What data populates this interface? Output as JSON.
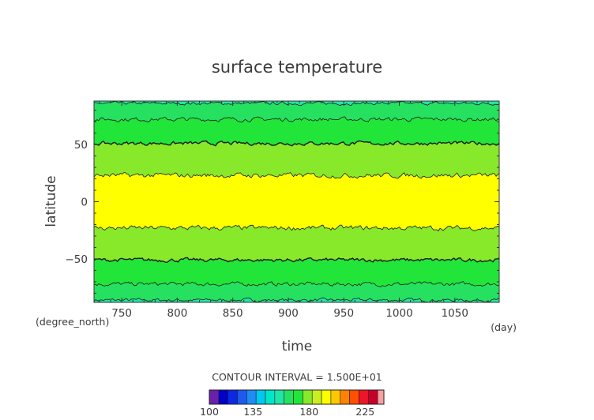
{
  "chart_data": {
    "type": "heatmap",
    "title": "surface temperature",
    "xlabel": "time",
    "ylabel": "latitude",
    "x_unit": "(day)",
    "y_unit": "(degree_north)",
    "xlim": [
      725,
      1090
    ],
    "ylim": [
      -88,
      88
    ],
    "x_ticks": [
      750,
      800,
      850,
      900,
      950,
      1000,
      1050
    ],
    "y_ticks": [
      -50,
      0,
      50
    ],
    "x_tick_labels": [
      "750",
      "800",
      "850",
      "900",
      "950",
      "1000",
      "1050"
    ],
    "y_tick_labels": [
      "−50",
      "0",
      "50"
    ],
    "contour_interval_text": "CONTOUR INTERVAL = 1.500E+01",
    "contour_levels": [
      165,
      180,
      195,
      210
    ],
    "mean_contour_latitudes": {
      "165": [
        -86,
        86
      ],
      "180": [
        -72,
        72
      ],
      "195": [
        -51,
        51
      ],
      "210": [
        -23,
        23
      ]
    },
    "level_colors": [
      {
        "from": 150,
        "to": 165,
        "color": "#22e5a8"
      },
      {
        "from": 165,
        "to": 180,
        "color": "#26e060"
      },
      {
        "from": 180,
        "to": 195,
        "color": "#22e53a"
      },
      {
        "from": 195,
        "to": 210,
        "color": "#88e82a"
      },
      {
        "from": 210,
        "to": 225,
        "color": "#ffff00"
      }
    ],
    "colorbar": {
      "min": 100,
      "max": 240,
      "step": 7.5,
      "tick_values": [
        100,
        135,
        180,
        225
      ],
      "tick_labels": [
        "100",
        "135",
        "180",
        "225"
      ],
      "colors": [
        "#6c1fa8",
        "#0000c8",
        "#0a28e6",
        "#1e5af0",
        "#1e8cf5",
        "#00c8f0",
        "#00e6c8",
        "#22e5a8",
        "#26e060",
        "#22e53a",
        "#88e82a",
        "#c8f020",
        "#ffff00",
        "#ffc800",
        "#ff8200",
        "#ff5000",
        "#f01428",
        "#c80028",
        "#f8a0a0"
      ]
    }
  }
}
